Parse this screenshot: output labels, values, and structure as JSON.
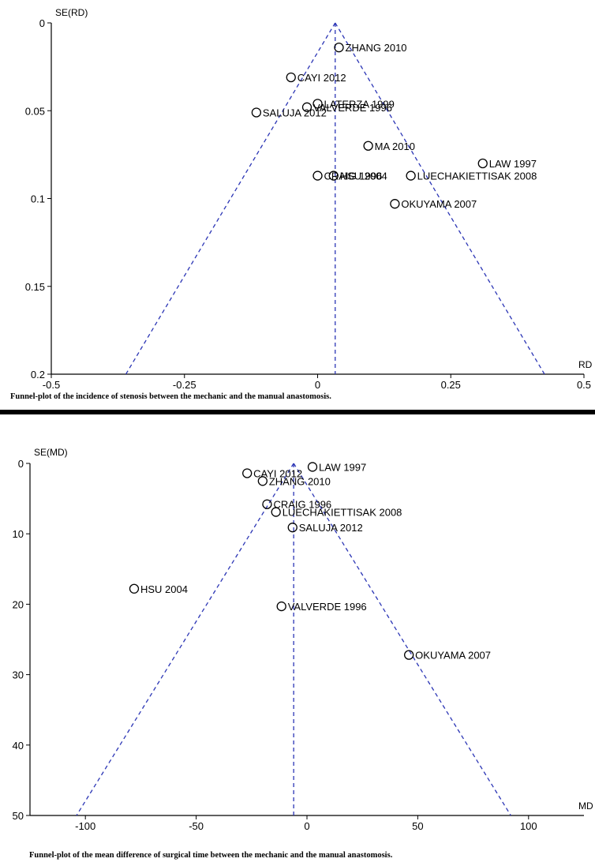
{
  "chart_data": [
    {
      "type": "scatter",
      "subtype": "funnel-plot",
      "xlabel": "RD",
      "ylabel": "SE(RD)",
      "xlim": [
        -0.5,
        0.5
      ],
      "ylim": [
        0,
        0.2
      ],
      "y_inverted": true,
      "x_ticks": [
        "-0.5",
        "-0.25",
        "0",
        "0.25",
        "0.5"
      ],
      "y_ticks": [
        "0",
        "0.05",
        "0.1",
        "0.15",
        "0.2"
      ],
      "pooled_estimate": 0.033,
      "funnel_apex": [
        0.033,
        0
      ],
      "funnel_base": [
        -0.36,
        0.2,
        0.426,
        0.2
      ],
      "line_color": "#2b35b5",
      "points": [
        {
          "label": "ZHANG 2010",
          "x": 0.04,
          "y": 0.014
        },
        {
          "label": "CAYI 2012",
          "x": -0.05,
          "y": 0.031
        },
        {
          "label": "LATERZA 1999",
          "x": 0.0,
          "y": 0.046
        },
        {
          "label": "VALVERDE 1996",
          "x": -0.02,
          "y": 0.048
        },
        {
          "label": "SALUJA 2012",
          "x": -0.115,
          "y": 0.051
        },
        {
          "label": "MA 2010",
          "x": 0.095,
          "y": 0.07
        },
        {
          "label": "LAW 1997",
          "x": 0.31,
          "y": 0.08
        },
        {
          "label": "LUECHAKIETTISAK 2008",
          "x": 0.175,
          "y": 0.087
        },
        {
          "label": "CRAIG 1996",
          "x": 0.0,
          "y": 0.087
        },
        {
          "label": "HSU 2004",
          "x": 0.03,
          "y": 0.087
        },
        {
          "label": "OKUYAMA 2007",
          "x": 0.145,
          "y": 0.103
        }
      ],
      "caption": "Funnel-plot of the incidence of stenosis between the mechanic and the manual anastomosis."
    },
    {
      "type": "scatter",
      "subtype": "funnel-plot",
      "xlabel": "MD",
      "ylabel": "SE(MD)",
      "xlim": [
        -125,
        125
      ],
      "ylim": [
        0,
        50
      ],
      "y_inverted": true,
      "x_ticks": [
        "-100",
        "-50",
        "0",
        "50",
        "100"
      ],
      "y_ticks": [
        "0",
        "10",
        "20",
        "30",
        "40",
        "50"
      ],
      "pooled_estimate": -6,
      "funnel_apex": [
        -6,
        0
      ],
      "funnel_base": [
        -104,
        50,
        92,
        50
      ],
      "line_color": "#2b35b5",
      "points": [
        {
          "label": "LAW 1997",
          "x": 2.5,
          "y": 0.5
        },
        {
          "label": "CAYI 2012",
          "x": -27,
          "y": 1.4
        },
        {
          "label": "ZHANG 2010",
          "x": -20,
          "y": 2.5
        },
        {
          "label": "CRAIG 1996",
          "x": -18,
          "y": 5.8
        },
        {
          "label": "LUECHAKIETTISAK 2008",
          "x": -14,
          "y": 6.9
        },
        {
          "label": "SALUJA 2012",
          "x": -6.5,
          "y": 9.1
        },
        {
          "label": "HSU 2004",
          "x": -78,
          "y": 17.8
        },
        {
          "label": "VALVERDE 1996",
          "x": -11.5,
          "y": 20.3
        },
        {
          "label": "OKUYAMA 2007",
          "x": 46,
          "y": 27.2
        }
      ],
      "caption": "Funnel-plot of the mean difference of surgical time between the mechanic and the manual anastomosis."
    }
  ]
}
